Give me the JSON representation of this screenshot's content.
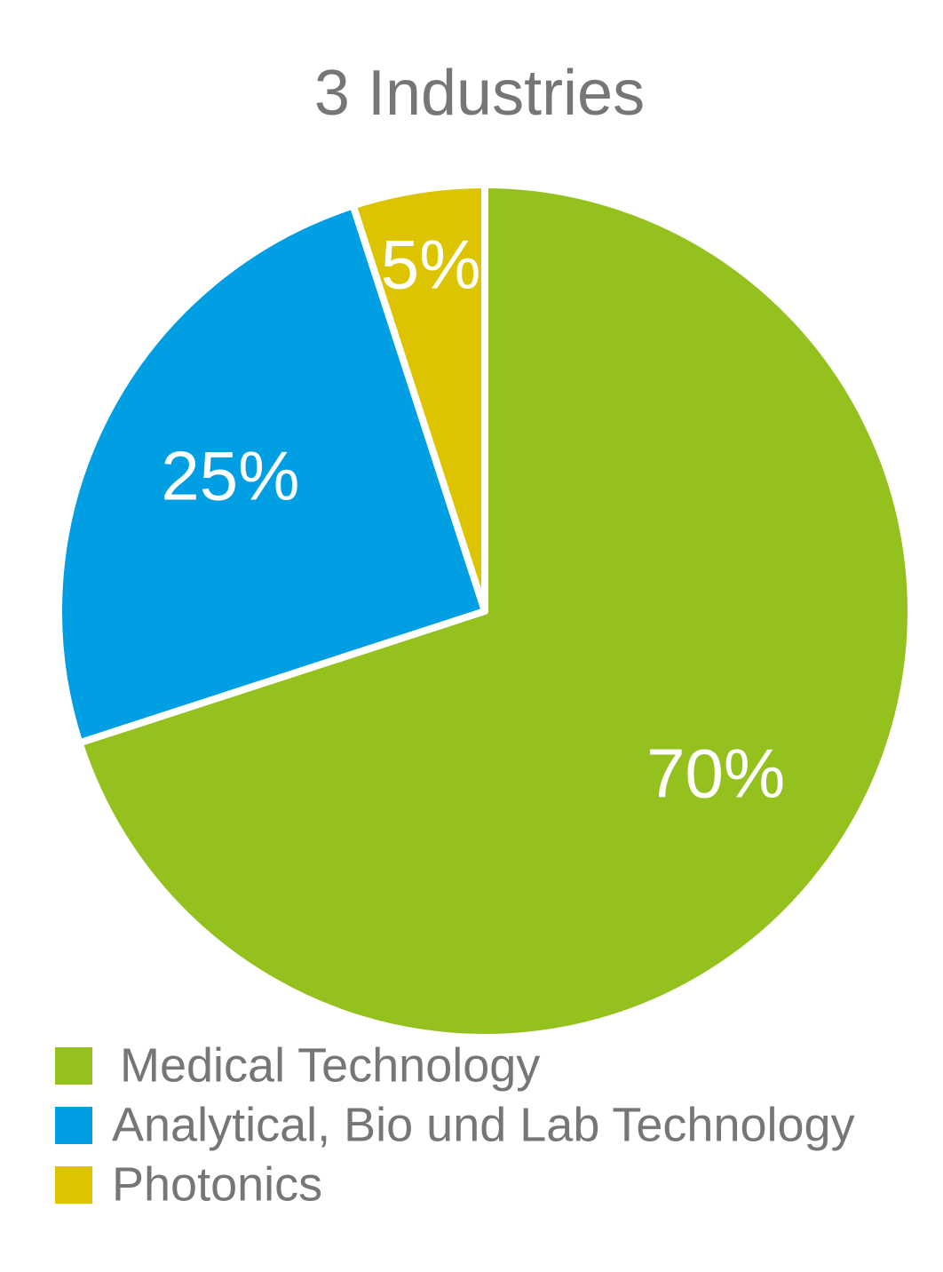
{
  "chart_data": {
    "type": "pie",
    "title": "3 Industries",
    "categories": [
      "Medical Technology",
      "Analytical, Bio und Lab Technology",
      "Photonics"
    ],
    "values": [
      70,
      25,
      5
    ],
    "value_labels": [
      "70%",
      "25%",
      "5%"
    ],
    "colors": [
      "#95c11f",
      "#009fe3",
      "#dcc500"
    ],
    "legend": "bottom"
  }
}
